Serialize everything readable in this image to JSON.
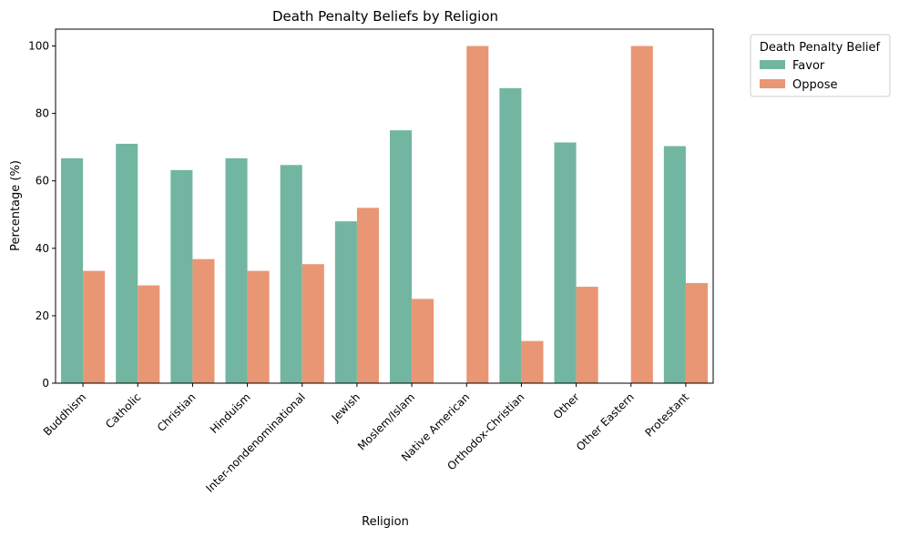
{
  "chart_data": {
    "type": "bar",
    "title": "Death Penalty Beliefs by Religion",
    "xlabel": "Religion",
    "ylabel": "Percentage (%)",
    "ylim": [
      0,
      105
    ],
    "yticks": [
      0,
      20,
      40,
      60,
      80,
      100
    ],
    "grid": false,
    "legend": {
      "title": "Death Penalty Belief",
      "position": "outside-top-right"
    },
    "categories": [
      "Buddhism",
      "Catholic",
      "Christian",
      "Hinduism",
      "Inter-nondenominational",
      "Jewish",
      "Moslem/Islam",
      "Native American",
      "Orthodox-Christian",
      "Other",
      "Other Eastern",
      "Protestant"
    ],
    "series": [
      {
        "name": "Favor",
        "color": "#72b6a1",
        "values": [
          66.7,
          71.0,
          63.2,
          66.7,
          64.7,
          48.0,
          75.0,
          0,
          87.5,
          71.4,
          0,
          70.3
        ]
      },
      {
        "name": "Oppose",
        "color": "#e99675",
        "values": [
          33.3,
          29.0,
          36.8,
          33.3,
          35.3,
          52.0,
          25.0,
          100.0,
          12.5,
          28.6,
          100.0,
          29.7
        ]
      }
    ]
  }
}
